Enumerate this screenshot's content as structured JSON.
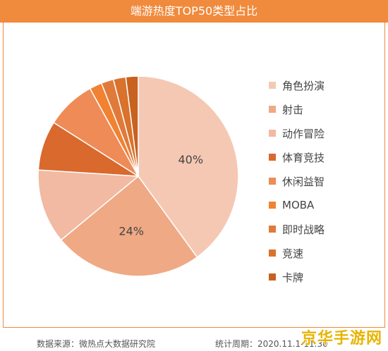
{
  "chart_data": {
    "type": "pie",
    "title": "端游热度TOP50类型占比",
    "categories": [
      "角色扮演",
      "射击",
      "动作冒险",
      "体育竞技",
      "休闲益智",
      "MOBA",
      "即时战略",
      "竞速",
      "卡牌"
    ],
    "values": [
      40,
      24,
      12,
      8,
      8,
      2,
      2,
      2,
      2
    ],
    "data_labels": {
      "角色扮演": "40%",
      "射击": "24%"
    },
    "colors": [
      "#f5c8b3",
      "#f0a985",
      "#f2b9a3",
      "#d9692d",
      "#ee8b57",
      "#f08232",
      "#e07a3a",
      "#d8722c",
      "#c8621f"
    ],
    "legend_position": "right"
  },
  "footer": {
    "source": "数据来源：微热点大数据研究院",
    "period": "统计周期：2020.11.1-11.30"
  },
  "watermark": "京华手游网"
}
